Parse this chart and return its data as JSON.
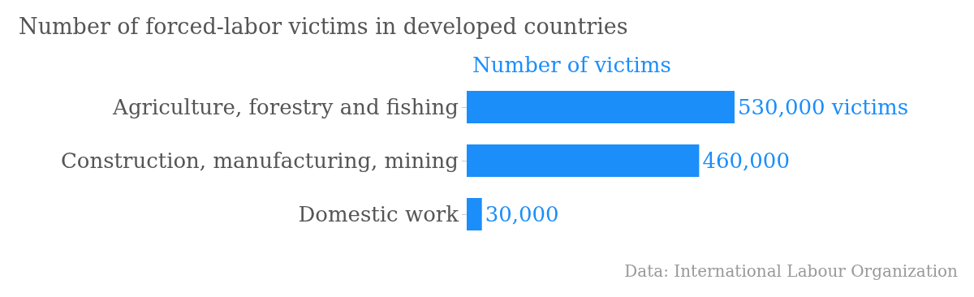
{
  "chart_data": {
    "type": "bar",
    "orientation": "horizontal",
    "title": "Number of forced-labor victims in developed countries",
    "categories": [
      "Agriculture, forestry and fishing",
      "Construction, manufacturing, mining",
      "Domestic work"
    ],
    "series": [
      {
        "name": "Number of victims",
        "color": "#1b8efa",
        "values": [
          530000,
          460000,
          30000
        ],
        "value_labels": [
          "530,000 victims",
          "460,000",
          "30,000"
        ]
      }
    ],
    "legend": "top",
    "annotations": [
      "Data: International Labour Organization"
    ]
  }
}
